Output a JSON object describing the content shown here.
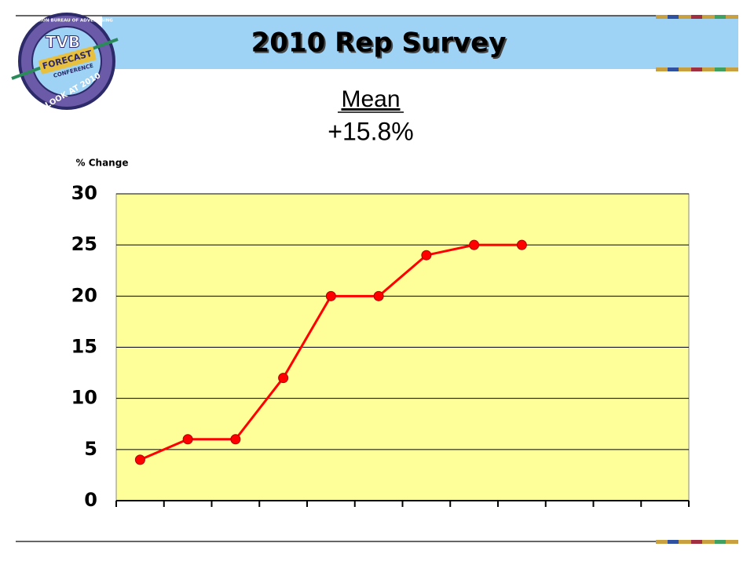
{
  "logo": {
    "brand": "TVB",
    "ring_top": "TELEVISION BUREAU OF ADVERTISING",
    "band": "FORECAST",
    "sub": "CONFERENCE",
    "ring_bottom": "A LOOK AT 2010"
  },
  "chart_data": {
    "type": "line",
    "title": "2010 Rep Survey",
    "annotations": [
      "Mean",
      "+15.8%"
    ],
    "y_label": "% Change",
    "categories": [
      null,
      null,
      null,
      null,
      null,
      null,
      null,
      null,
      null,
      null,
      null,
      null
    ],
    "series": [
      {
        "name": null,
        "color": "#ff0000",
        "values": [
          4,
          6,
          6,
          12,
          20,
          20,
          24,
          25,
          25,
          null,
          null,
          null
        ]
      }
    ],
    "ylim": [
      0,
      30
    ],
    "yticks": [
      0,
      5,
      10,
      15,
      20,
      25,
      30
    ],
    "grid": true,
    "background": "#ffff99"
  }
}
